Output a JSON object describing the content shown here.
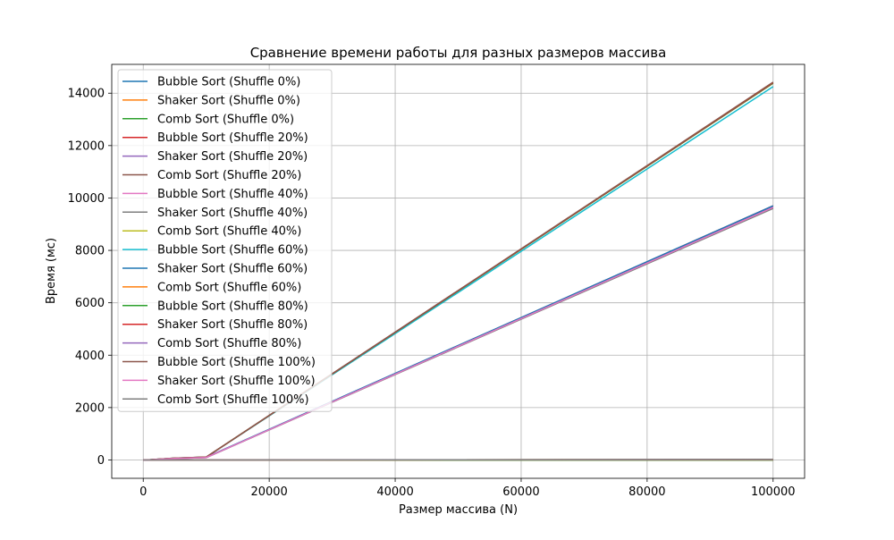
{
  "chart_data": {
    "type": "line",
    "title": "Сравнение времени работы для разных размеров массива",
    "xlabel": "Размер массива (N)",
    "ylabel": "Время (мс)",
    "xlim": [
      -5000,
      105000
    ],
    "ylim": [
      -700,
      15100
    ],
    "x_ticks": [
      0,
      20000,
      40000,
      60000,
      80000,
      100000
    ],
    "y_ticks": [
      0,
      2000,
      4000,
      6000,
      8000,
      10000,
      12000,
      14000
    ],
    "grid": true,
    "legend_position": "upper-left",
    "x": [
      0,
      1000,
      5000,
      10000,
      100000
    ],
    "series": [
      {
        "name": "Bubble Sort (Shuffle 0%)",
        "color": "#1f77b4",
        "values": [
          0,
          0,
          0,
          0,
          0
        ]
      },
      {
        "name": "Shaker Sort (Shuffle 0%)",
        "color": "#ff7f0e",
        "values": [
          0,
          0,
          0,
          0,
          0
        ]
      },
      {
        "name": "Comb Sort (Shuffle 0%)",
        "color": "#2ca02c",
        "values": [
          0,
          0,
          0,
          0,
          0
        ]
      },
      {
        "name": "Bubble Sort (Shuffle 20%)",
        "color": "#d62728",
        "values": [
          0,
          5,
          60,
          95,
          9700
        ]
      },
      {
        "name": "Shaker Sort (Shuffle 20%)",
        "color": "#9467bd",
        "values": [
          0,
          4,
          55,
          90,
          9650
        ]
      },
      {
        "name": "Comb Sort (Shuffle 20%)",
        "color": "#8c564b",
        "values": [
          0,
          0,
          0,
          1,
          15
        ]
      },
      {
        "name": "Bubble Sort (Shuffle 40%)",
        "color": "#e377c2",
        "values": [
          0,
          5,
          60,
          95,
          9620
        ]
      },
      {
        "name": "Shaker Sort (Shuffle 40%)",
        "color": "#7f7f7f",
        "values": [
          0,
          4,
          55,
          90,
          9600
        ]
      },
      {
        "name": "Comb Sort (Shuffle 40%)",
        "color": "#bcbd22",
        "values": [
          0,
          0,
          0,
          1,
          16
        ]
      },
      {
        "name": "Bubble Sort (Shuffle 60%)",
        "color": "#17becf",
        "values": [
          0,
          6,
          70,
          110,
          14250
        ]
      },
      {
        "name": "Shaker Sort (Shuffle 60%)",
        "color": "#1f77b4",
        "values": [
          0,
          6,
          68,
          105,
          9700
        ]
      },
      {
        "name": "Comb Sort (Shuffle 60%)",
        "color": "#ff7f0e",
        "values": [
          0,
          0,
          0,
          1,
          17
        ]
      },
      {
        "name": "Bubble Sort (Shuffle 80%)",
        "color": "#2ca02c",
        "values": [
          0,
          6,
          72,
          112,
          14380
        ]
      },
      {
        "name": "Shaker Sort (Shuffle 80%)",
        "color": "#d62728",
        "values": [
          0,
          6,
          70,
          110,
          14400
        ]
      },
      {
        "name": "Comb Sort (Shuffle 80%)",
        "color": "#9467bd",
        "values": [
          0,
          0,
          0,
          1,
          18
        ]
      },
      {
        "name": "Bubble Sort (Shuffle 100%)",
        "color": "#8c564b",
        "values": [
          0,
          6,
          72,
          112,
          14420
        ]
      },
      {
        "name": "Shaker Sort (Shuffle 100%)",
        "color": "#e377c2",
        "values": [
          0,
          5,
          60,
          95,
          9640
        ]
      },
      {
        "name": "Comb Sort (Shuffle 100%)",
        "color": "#7f7f7f",
        "values": [
          0,
          0,
          0,
          1,
          19
        ]
      }
    ]
  }
}
